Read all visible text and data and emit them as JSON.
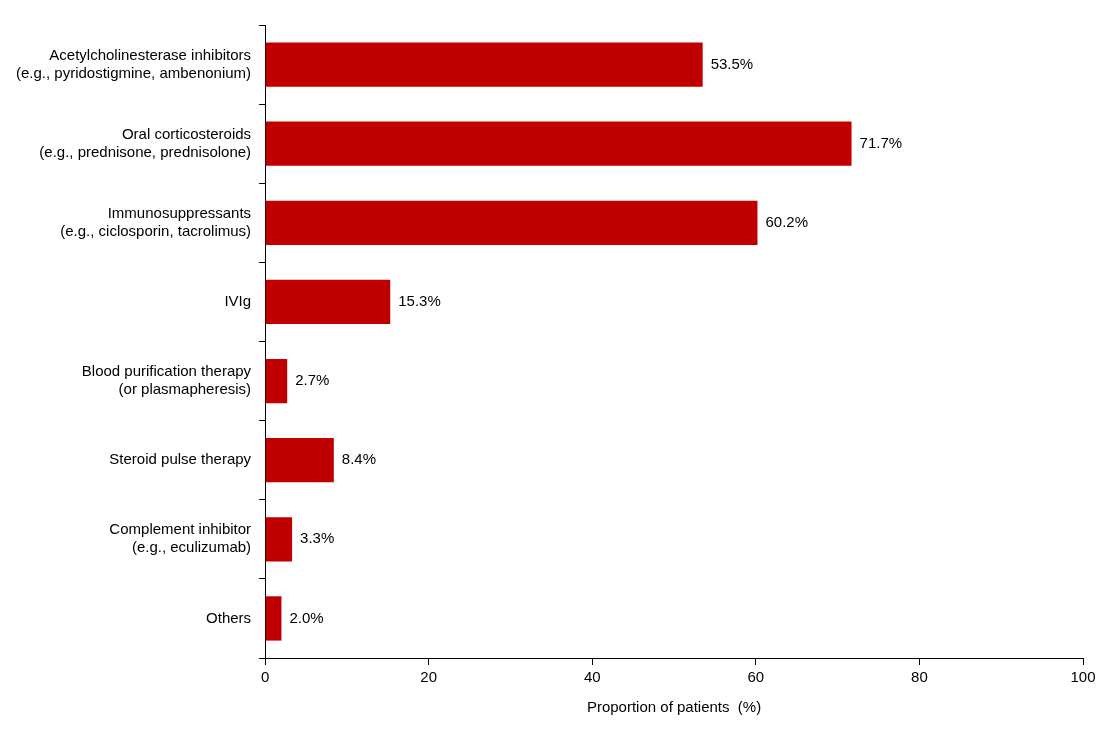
{
  "chart_data": {
    "type": "bar",
    "orientation": "horizontal",
    "categories": [
      "Acetylcholinesterase inhibitors\n(e.g., pyridostigmine, ambenonium)",
      "Oral corticosteroids\n(e.g., prednisone, prednisolone)",
      "Immunosuppressants\n(e.g., ciclosporin, tacrolimus)",
      "IVIg",
      "Blood purification therapy\n(or plasmapheresis)",
      "Steroid pulse therapy",
      "Complement inhibitor\n(e.g., eculizumab)",
      "Others"
    ],
    "values": [
      53.5,
      71.7,
      60.2,
      15.3,
      2.7,
      8.4,
      3.3,
      2.0
    ],
    "value_labels": [
      "53.5%",
      "71.7%",
      "60.2%",
      "15.3%",
      "2.7%",
      "8.4%",
      "3.3%",
      "2.0%"
    ],
    "color": "#c00000",
    "xlabel": "Proportion of patients  (%)",
    "xlim": [
      0,
      100
    ],
    "xticks": [
      0,
      20,
      40,
      60,
      80,
      100
    ],
    "grid": false,
    "legend": false
  }
}
